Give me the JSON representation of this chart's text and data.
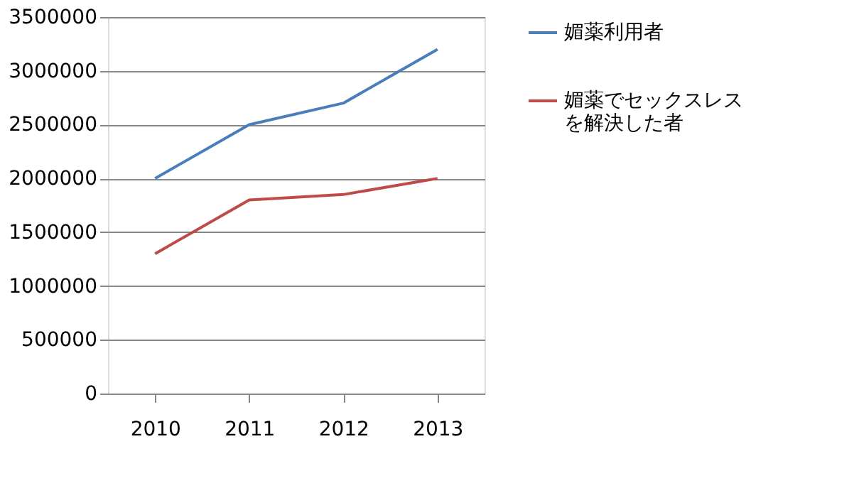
{
  "chart_data": {
    "type": "line",
    "categories": [
      "2010",
      "2011",
      "2012",
      "2013"
    ],
    "series": [
      {
        "name": "媚薬利用者",
        "color": "#4a7ebb",
        "values": [
          2000000,
          2500000,
          2700000,
          3200000
        ]
      },
      {
        "name": "媚薬でセックスレスを解決した者",
        "color": "#be4b48",
        "values": [
          1300000,
          1800000,
          1850000,
          2000000
        ]
      }
    ],
    "ylim": [
      0,
      3500000
    ],
    "yticks": [
      0,
      500000,
      1000000,
      1500000,
      2000000,
      2500000,
      3000000,
      3500000
    ],
    "grid": "y",
    "legend": "right",
    "marker": "none",
    "line_style": "solid"
  }
}
